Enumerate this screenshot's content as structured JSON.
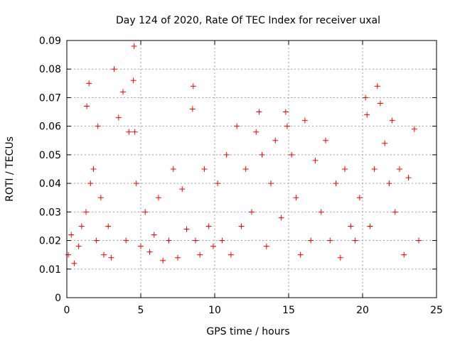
{
  "chart_data": {
    "type": "scatter",
    "title": "Day 124 of 2020, Rate Of TEC Index for receiver uxal",
    "xlabel": "GPS time / hours",
    "ylabel": "ROTI / TECUs",
    "xlim": [
      0,
      25
    ],
    "ylim": [
      0,
      0.09
    ],
    "xticks": [
      0,
      5,
      10,
      15,
      20,
      25
    ],
    "xtick_labels": [
      "0",
      "5",
      "10",
      "15",
      "20",
      "25"
    ],
    "yticks": [
      0,
      0.01,
      0.02,
      0.03,
      0.04,
      0.05,
      0.06,
      0.07,
      0.08,
      0.09
    ],
    "ytick_labels": [
      "0",
      "0.01",
      "0.02",
      "0.03",
      "0.04",
      "0.05",
      "0.06",
      "0.07",
      "0.08",
      "0.09"
    ],
    "grid": true,
    "marker": "+",
    "series": [
      {
        "name": "ROTI",
        "color": "#ff0000",
        "x": [
          0.1,
          0.3,
          0.5,
          0.8,
          1.0,
          1.3,
          1.35,
          1.5,
          1.6,
          1.8,
          2.0,
          2.1,
          2.3,
          2.5,
          2.8,
          3.0,
          3.2,
          3.5,
          3.8,
          4.0,
          4.2,
          4.5,
          4.55,
          4.6,
          4.7,
          5.0,
          5.3,
          5.6,
          5.9,
          6.2,
          6.5,
          6.9,
          7.2,
          7.5,
          7.8,
          8.1,
          8.5,
          8.55,
          8.7,
          9.0,
          9.3,
          9.6,
          9.9,
          10.2,
          10.5,
          10.8,
          11.1,
          11.5,
          11.8,
          12.1,
          12.5,
          12.8,
          13.0,
          13.2,
          13.5,
          13.8,
          14.1,
          14.5,
          14.8,
          14.9,
          15.2,
          15.5,
          15.8,
          16.1,
          16.5,
          16.8,
          17.2,
          17.5,
          17.8,
          18.2,
          18.5,
          18.8,
          19.2,
          19.5,
          19.8,
          20.2,
          20.3,
          20.5,
          20.8,
          21.0,
          21.2,
          21.5,
          21.8,
          22.0,
          22.2,
          22.5,
          22.8,
          23.1,
          23.5,
          23.8
        ],
        "y": [
          0.015,
          0.022,
          0.012,
          0.018,
          0.025,
          0.03,
          0.067,
          0.075,
          0.04,
          0.045,
          0.02,
          0.06,
          0.035,
          0.015,
          0.025,
          0.014,
          0.08,
          0.063,
          0.072,
          0.02,
          0.058,
          0.076,
          0.088,
          0.058,
          0.04,
          0.018,
          0.03,
          0.016,
          0.022,
          0.035,
          0.013,
          0.02,
          0.045,
          0.014,
          0.038,
          0.024,
          0.066,
          0.074,
          0.02,
          0.015,
          0.045,
          0.025,
          0.018,
          0.04,
          0.02,
          0.05,
          0.015,
          0.06,
          0.025,
          0.045,
          0.03,
          0.058,
          0.065,
          0.05,
          0.018,
          0.04,
          0.055,
          0.028,
          0.065,
          0.06,
          0.05,
          0.035,
          0.015,
          0.062,
          0.02,
          0.048,
          0.03,
          0.055,
          0.02,
          0.04,
          0.014,
          0.045,
          0.025,
          0.02,
          0.035,
          0.07,
          0.064,
          0.025,
          0.045,
          0.074,
          0.068,
          0.054,
          0.04,
          0.062,
          0.03,
          0.045,
          0.015,
          0.042,
          0.059,
          0.02
        ]
      }
    ]
  }
}
